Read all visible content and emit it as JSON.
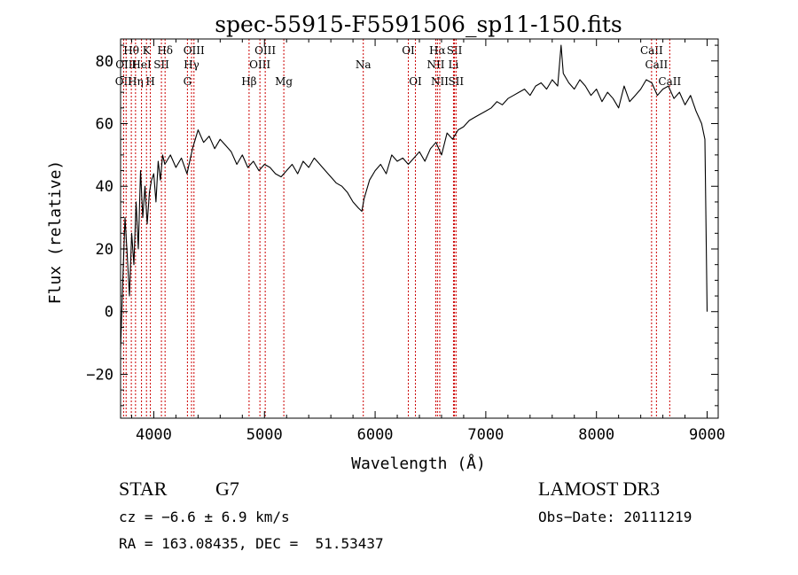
{
  "chart_data": {
    "type": "line",
    "title": "spec-55915-F5591506_sp11-150.fits",
    "xlabel": "Wavelength (Å)",
    "ylabel": "Flux (relative)",
    "xlim": [
      3700,
      9100
    ],
    "ylim": [
      -34,
      87
    ],
    "xticks": [
      4000,
      5000,
      6000,
      7000,
      8000,
      9000
    ],
    "yticks": [
      -20,
      0,
      20,
      40,
      60,
      80
    ],
    "xtick_labels": [
      "4000",
      "5000",
      "6000",
      "7000",
      "8000",
      "9000"
    ],
    "ytick_labels": [
      "−20",
      "0",
      "20",
      "40",
      "60",
      "80"
    ],
    "series": [
      {
        "name": "flux",
        "x": [
          3700,
          3720,
          3740,
          3760,
          3780,
          3800,
          3820,
          3840,
          3860,
          3880,
          3900,
          3920,
          3940,
          3960,
          3980,
          4000,
          4020,
          4040,
          4060,
          4080,
          4100,
          4150,
          4200,
          4250,
          4300,
          4350,
          4400,
          4450,
          4500,
          4550,
          4600,
          4650,
          4700,
          4750,
          4800,
          4850,
          4900,
          4950,
          5000,
          5050,
          5100,
          5150,
          5200,
          5250,
          5300,
          5350,
          5400,
          5450,
          5500,
          5550,
          5600,
          5650,
          5700,
          5750,
          5800,
          5850,
          5880,
          5900,
          5950,
          6000,
          6050,
          6100,
          6150,
          6200,
          6250,
          6300,
          6350,
          6400,
          6450,
          6500,
          6550,
          6600,
          6650,
          6700,
          6750,
          6800,
          6850,
          6900,
          6950,
          7000,
          7050,
          7100,
          7150,
          7200,
          7250,
          7300,
          7350,
          7400,
          7450,
          7500,
          7550,
          7600,
          7650,
          7680,
          7700,
          7750,
          7800,
          7850,
          7900,
          7950,
          8000,
          8050,
          8100,
          8150,
          8200,
          8250,
          8300,
          8350,
          8400,
          8450,
          8500,
          8550,
          8600,
          8650,
          8700,
          8750,
          8800,
          8850,
          8900,
          8950,
          8980,
          9000
        ],
        "values": [
          -12,
          10,
          30,
          18,
          5,
          25,
          15,
          35,
          20,
          45,
          30,
          40,
          28,
          38,
          42,
          44,
          35,
          48,
          42,
          50,
          47,
          50,
          46,
          49,
          44,
          52,
          58,
          54,
          56,
          52,
          55,
          53,
          51,
          47,
          50,
          46,
          48,
          45,
          47,
          46,
          44,
          43,
          45,
          47,
          44,
          48,
          46,
          49,
          47,
          45,
          43,
          41,
          40,
          38,
          35,
          33,
          32,
          36,
          42,
          45,
          47,
          44,
          50,
          48,
          49,
          47,
          49,
          51,
          48,
          52,
          54,
          50,
          57,
          55,
          58,
          59,
          61,
          62,
          63,
          64,
          65,
          67,
          66,
          68,
          69,
          70,
          71,
          69,
          72,
          73,
          71,
          74,
          72,
          85,
          76,
          73,
          71,
          74,
          72,
          69,
          71,
          67,
          70,
          68,
          65,
          72,
          67,
          69,
          71,
          74,
          73,
          69,
          71,
          72,
          68,
          70,
          66,
          69,
          64,
          60,
          55,
          0
        ]
      }
    ],
    "line_markers": [
      {
        "wavelength": 3727,
        "label": "OII",
        "row": 3
      },
      {
        "wavelength": 3750,
        "label": "OIII",
        "row": 2
      },
      {
        "wavelength": 3797,
        "label": "Hθ",
        "row": 1
      },
      {
        "wavelength": 3835,
        "label": "Hη",
        "row": 3
      },
      {
        "wavelength": 3889,
        "label": "HeI",
        "row": 2
      },
      {
        "wavelength": 3934,
        "label": "K",
        "row": 1
      },
      {
        "wavelength": 3969,
        "label": "H",
        "row": 3
      },
      {
        "wavelength": 4069,
        "label": "SII",
        "row": 2
      },
      {
        "wavelength": 4102,
        "label": "Hδ",
        "row": 1
      },
      {
        "wavelength": 4304,
        "label": "G",
        "row": 3
      },
      {
        "wavelength": 4341,
        "label": "Hγ",
        "row": 2
      },
      {
        "wavelength": 4363,
        "label": "OIII",
        "row": 1
      },
      {
        "wavelength": 4861,
        "label": "Hβ",
        "row": 3
      },
      {
        "wavelength": 4959,
        "label": "OIII",
        "row": 2
      },
      {
        "wavelength": 5007,
        "label": "OIII",
        "row": 1
      },
      {
        "wavelength": 5175,
        "label": "Mg",
        "row": 3
      },
      {
        "wavelength": 5893,
        "label": "Na",
        "row": 2
      },
      {
        "wavelength": 6300,
        "label": "OI",
        "row": 1
      },
      {
        "wavelength": 6364,
        "label": "OI",
        "row": 3
      },
      {
        "wavelength": 6548,
        "label": "NII",
        "row": 2
      },
      {
        "wavelength": 6563,
        "label": "Hα",
        "row": 1
      },
      {
        "wavelength": 6584,
        "label": "NII",
        "row": 3
      },
      {
        "wavelength": 6708,
        "label": "Li",
        "row": 2
      },
      {
        "wavelength": 6717,
        "label": "SII",
        "row": 1
      },
      {
        "wavelength": 6731,
        "label": "SII",
        "row": 3
      },
      {
        "wavelength": 8498,
        "label": "CaII",
        "row": 1
      },
      {
        "wavelength": 8542,
        "label": "CaII",
        "row": 2
      },
      {
        "wavelength": 8662,
        "label": "CaII",
        "row": 3
      }
    ],
    "marker_color": "#cc0000",
    "grid": false,
    "legend": "none"
  },
  "info": {
    "object_class": "STAR",
    "subclass": "G7",
    "survey": "LAMOST DR3",
    "cz_line": "cz = −6.6 ± 6.9 km/s",
    "obs_date": "Obs−Date: 20111219",
    "radec_line": "RA = 163.08435, DEC =  51.53437"
  }
}
